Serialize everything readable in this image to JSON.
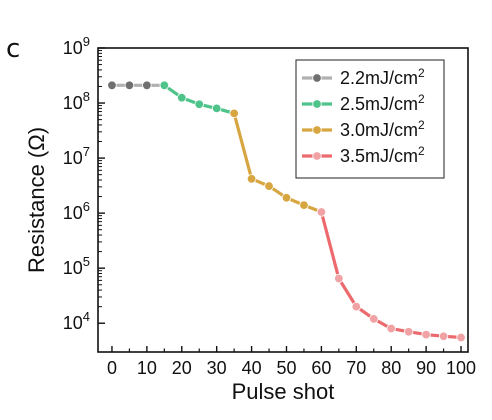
{
  "panel_label": "c",
  "chart_data": {
    "type": "line",
    "title": "",
    "xlabel": "Pulse shot",
    "ylabel": "Resistance (Ω)",
    "xlim": [
      -4,
      102
    ],
    "ylim": [
      3000,
      1000000000
    ],
    "y_scale": "log",
    "x_ticks": [
      0,
      10,
      20,
      30,
      40,
      50,
      60,
      70,
      80,
      90,
      100
    ],
    "x_tick_labels": [
      "0",
      "10",
      "20",
      "30",
      "40",
      "50",
      "60",
      "70",
      "80",
      "90",
      "100"
    ],
    "y_ticks": [
      10000,
      100000,
      1000000,
      10000000,
      100000000,
      1000000000
    ],
    "y_tick_labels": [
      {
        "base": "10",
        "exp": "4"
      },
      {
        "base": "10",
        "exp": "5"
      },
      {
        "base": "10",
        "exp": "6"
      },
      {
        "base": "10",
        "exp": "7"
      },
      {
        "base": "10",
        "exp": "8"
      },
      {
        "base": "10",
        "exp": "9"
      }
    ],
    "grid": false,
    "legend_position": "top-right",
    "series": [
      {
        "name": "2.2mJ/cm",
        "name_sup": "2",
        "color": "#b0b0b0",
        "marker_color": "#707070",
        "x": [
          0,
          5,
          10,
          15
        ],
        "y": [
          210000000,
          210000000,
          210000000,
          210000000
        ]
      },
      {
        "name": "2.5mJ/cm",
        "name_sup": "2",
        "color": "#4fc48a",
        "marker_color": "#4fc48a",
        "x": [
          15,
          20,
          25,
          30,
          35
        ],
        "y": [
          210000000,
          125000000,
          95000000,
          80000000,
          65000000
        ]
      },
      {
        "name": "3.0mJ/cm",
        "name_sup": "2",
        "color": "#d8a640",
        "marker_color": "#d8a640",
        "x": [
          35,
          40,
          45,
          50,
          55,
          60
        ],
        "y": [
          65000000,
          4200000,
          3100000,
          1900000,
          1400000,
          1050000
        ]
      },
      {
        "name": "3.5mJ/cm",
        "name_sup": "2",
        "color": "#ec6a6d",
        "marker_color": "#f0a2a4",
        "x": [
          60,
          65,
          70,
          75,
          80,
          85,
          90,
          95,
          100
        ],
        "y": [
          1050000,
          65000,
          20000,
          12000,
          8000,
          7000,
          6200,
          5800,
          5500
        ]
      }
    ]
  }
}
